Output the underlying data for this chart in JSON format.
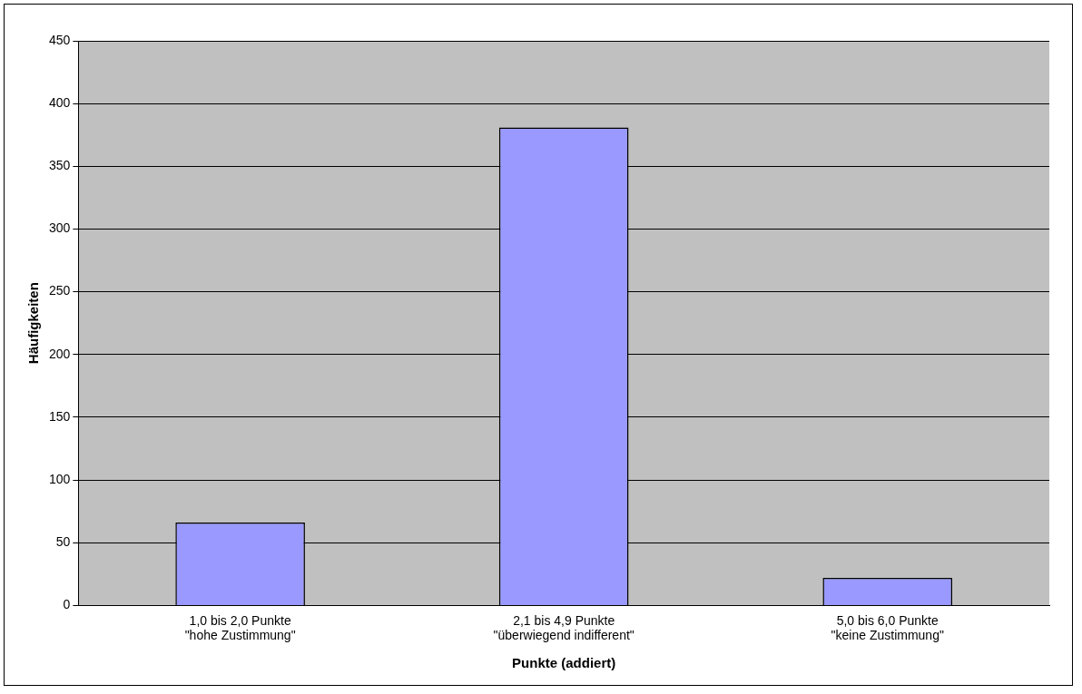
{
  "chart_data": {
    "type": "bar",
    "xlabel": "Punkte (addiert)",
    "ylabel": "Häufigkeiten",
    "categories": [
      "1,0 bis 2,0 Punkte\n\"hohe Zustimmung\"",
      "2,1 bis 4,9 Punkte\n\"überwiegend indifferent\"",
      "5,0 bis 6,0 Punkte\n\"keine Zustimmung\""
    ],
    "values": [
      66,
      381,
      22
    ],
    "color": "#9999ff",
    "ylim": [
      0,
      450
    ],
    "yticks": [
      0,
      50,
      100,
      150,
      200,
      250,
      300,
      350,
      400,
      450
    ],
    "grid": "y",
    "legend": false
  }
}
